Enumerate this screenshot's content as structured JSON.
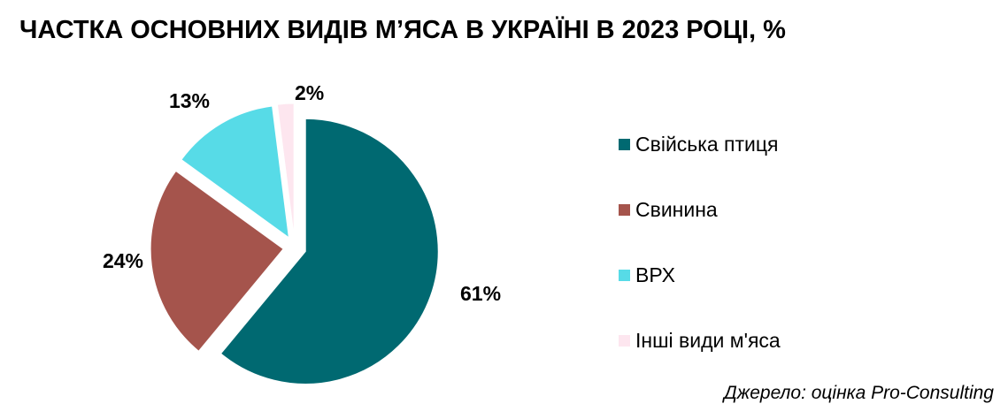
{
  "title": "ЧАСТКА ОСНОВНИХ ВИДІВ М’ЯСА В УКРАЇНІ В 2023 РОЦІ, %",
  "source": "Джерело: оцінка Pro-Consulting",
  "chart_data": {
    "type": "pie",
    "title": "ЧАСТКА ОСНОВНИХ ВИДІВ М’ЯСА В УКРАЇНІ В 2023 РОЦІ, %",
    "categories": [
      "Свійська птиця",
      "Свинина",
      "ВРХ",
      "Інші види м'яса"
    ],
    "values": [
      61,
      24,
      13,
      2
    ],
    "data_labels": [
      "61%",
      "24%",
      "13%",
      "2%"
    ],
    "colors": [
      "#006971",
      "#a5544c",
      "#57dbe7",
      "#fde6ef"
    ],
    "start_direction": "top",
    "slice_order": "clockwise",
    "exploded": true,
    "legend_position": "right"
  }
}
